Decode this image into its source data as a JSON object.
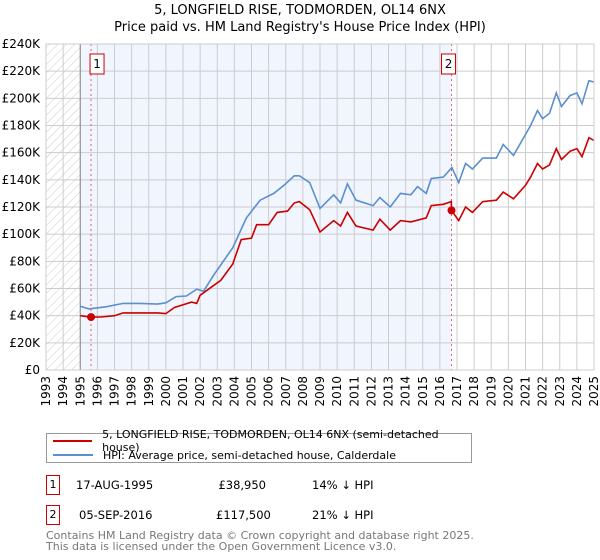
{
  "chart_data": {
    "type": "line",
    "title": "5, LONGFIELD RISE, TODMORDEN, OL14 6NX",
    "subtitle": "Price paid vs. HM Land Registry's House Price Index (HPI)",
    "xlim": [
      1993,
      2025
    ],
    "ylim": [
      0,
      240000
    ],
    "yticks": [
      0,
      20000,
      40000,
      60000,
      80000,
      100000,
      120000,
      140000,
      160000,
      180000,
      200000,
      220000,
      240000
    ],
    "ytick_labels": [
      "£0",
      "£20K",
      "£40K",
      "£60K",
      "£80K",
      "£100K",
      "£120K",
      "£140K",
      "£160K",
      "£180K",
      "£200K",
      "£220K",
      "£240K"
    ],
    "xtick_labels": [
      "1993",
      "1994",
      "1995",
      "1996",
      "1997",
      "1998",
      "1999",
      "2000",
      "2001",
      "2002",
      "2003",
      "2004",
      "2005",
      "2006",
      "2007",
      "2008",
      "2009",
      "2010",
      "2011",
      "2012",
      "2013",
      "2014",
      "2015",
      "2016",
      "2017",
      "2018",
      "2019",
      "2020",
      "2021",
      "2022",
      "2023",
      "2024",
      "2025"
    ],
    "grid": true,
    "series": [
      {
        "name": "5, LONGFIELD RISE, TODMORDEN, OL14 6NX (semi-detached house)",
        "color": "#cc0000",
        "x": [
          1995.0,
          1995.6,
          1996.2,
          1997.0,
          1997.5,
          1998.5,
          1999.5,
          2000.0,
          2000.5,
          2001.5,
          2001.8,
          2002.0,
          2002.6,
          2003.2,
          2003.9,
          2004.4,
          2005.0,
          2005.3,
          2006.0,
          2006.5,
          2007.1,
          2007.5,
          2007.8,
          2008.4,
          2009.0,
          2009.8,
          2010.2,
          2010.6,
          2011.1,
          2012.1,
          2012.5,
          2013.1,
          2013.7,
          2014.3,
          2015.2,
          2015.5,
          2016.2,
          2016.67,
          2016.68,
          2017.1,
          2017.5,
          2017.9,
          2018.5,
          2019.3,
          2019.7,
          2020.3,
          2021.0,
          2021.3,
          2021.7,
          2022.0,
          2022.4,
          2022.8,
          2023.1,
          2023.6,
          2024.0,
          2024.3,
          2024.7,
          2025.0
        ],
        "y": [
          40000,
          38950,
          39000,
          40000,
          42000,
          42000,
          42000,
          41500,
          46000,
          50000,
          49000,
          55000,
          60500,
          66000,
          78000,
          96000,
          97000,
          107000,
          107000,
          116000,
          117000,
          123000,
          124000,
          118000,
          101600,
          110000,
          106000,
          116000,
          106000,
          103000,
          111000,
          103000,
          110000,
          109000,
          112000,
          121000,
          122000,
          124000,
          117500,
          110000,
          120000,
          116000,
          124000,
          125000,
          131000,
          126000,
          136000,
          142000,
          152000,
          148000,
          151000,
          163000,
          155000,
          161000,
          163000,
          157000,
          171000,
          169000
        ]
      },
      {
        "name": "HPI: Average price, semi-detached house, Calderdale",
        "color": "#5b8fd0",
        "x": [
          1995.0,
          1995.5,
          1996.5,
          1997.5,
          1998.5,
          1999.5,
          2000.0,
          2000.6,
          2001.2,
          2001.8,
          2002.2,
          2002.8,
          2003.9,
          2004.7,
          2005.5,
          2006.3,
          2006.9,
          2007.5,
          2007.8,
          2008.4,
          2009.0,
          2009.8,
          2010.2,
          2010.6,
          2011.1,
          2012.1,
          2012.5,
          2013.1,
          2013.7,
          2014.3,
          2014.7,
          2015.2,
          2015.5,
          2016.2,
          2016.7,
          2017.1,
          2017.5,
          2017.9,
          2018.5,
          2019.3,
          2019.7,
          2020.3,
          2021.3,
          2021.7,
          2022.0,
          2022.4,
          2022.8,
          2023.1,
          2023.6,
          2024.0,
          2024.3,
          2024.7,
          2025.0
        ],
        "y": [
          47000,
          45000,
          46500,
          49000,
          49000,
          48500,
          49500,
          54000,
          54500,
          59500,
          58000,
          70000,
          90000,
          112000,
          125000,
          130000,
          136000,
          143000,
          143000,
          138000,
          119000,
          129000,
          123000,
          137000,
          125000,
          121000,
          127000,
          120000,
          130000,
          129000,
          135000,
          130000,
          141000,
          142000,
          149000,
          138000,
          152000,
          148000,
          156000,
          156000,
          166000,
          158000,
          180000,
          191000,
          185000,
          189000,
          204000,
          194000,
          202000,
          204000,
          196000,
          213000,
          212000
        ]
      }
    ],
    "sales": [
      {
        "label": "1",
        "x": 1995.63,
        "y": 38950
      },
      {
        "label": "2",
        "x": 2016.68,
        "y": 117500
      }
    ],
    "legend_position": "bottom"
  },
  "table": [
    {
      "num": "1",
      "date": "17-AUG-1995",
      "price": "£38,950",
      "hpi": "14% ↓ HPI"
    },
    {
      "num": "2",
      "date": "05-SEP-2016",
      "price": "£117,500",
      "hpi": "21% ↓ HPI"
    }
  ],
  "footer": {
    "line1": "Contains HM Land Registry data © Crown copyright and database right 2025.",
    "line2": "This data is licensed under the Open Government Licence v3.0."
  }
}
